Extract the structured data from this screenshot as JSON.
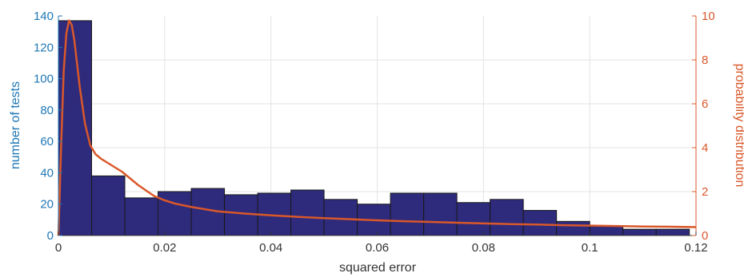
{
  "chart_data": {
    "type": "bar",
    "xlabel": "squared error",
    "ylabel_left": "number of tests",
    "ylabel_right": "probability distribution",
    "xlim": [
      0,
      0.12
    ],
    "ylim_left": [
      0,
      140
    ],
    "ylim_right": [
      0,
      10
    ],
    "x_ticks": [
      0,
      0.02,
      0.04,
      0.06,
      0.08,
      0.1,
      0.12
    ],
    "x_tick_labels": [
      "0",
      "0.02",
      "0.04",
      "0.06",
      "0.08",
      "0.1",
      "0.12"
    ],
    "y_left_ticks": [
      0,
      20,
      40,
      60,
      80,
      100,
      120,
      140
    ],
    "y_left_tick_labels": [
      "0",
      "20",
      "40",
      "60",
      "80",
      "100",
      "120",
      "140"
    ],
    "y_right_ticks": [
      0,
      2,
      4,
      6,
      8,
      10
    ],
    "y_right_tick_labels": [
      "0",
      "2",
      "4",
      "6",
      "8",
      "10"
    ],
    "grid": true,
    "histogram": {
      "bin_width": 0.00625,
      "bin_starts": [
        0,
        0.00625,
        0.0125,
        0.01875,
        0.025,
        0.03125,
        0.0375,
        0.04375,
        0.05,
        0.05625,
        0.0625,
        0.06875,
        0.075,
        0.08125,
        0.0875,
        0.09375,
        0.1,
        0.10625,
        0.1125
      ],
      "counts": [
        137,
        38,
        24,
        28,
        30,
        26,
        27,
        29,
        23,
        20,
        27,
        27,
        21,
        23,
        16,
        9,
        6,
        4,
        4
      ],
      "color": "#2e2a7c"
    },
    "pdf_curve": {
      "color": "#d9582a",
      "x": [
        0.0,
        0.0005,
        0.001,
        0.0015,
        0.002,
        0.0025,
        0.003,
        0.004,
        0.005,
        0.006,
        0.007,
        0.008,
        0.01,
        0.012,
        0.015,
        0.018,
        0.02,
        0.022,
        0.025,
        0.03,
        0.035,
        0.04,
        0.045,
        0.05,
        0.055,
        0.06,
        0.065,
        0.07,
        0.075,
        0.08,
        0.085,
        0.09,
        0.095,
        0.1,
        0.105,
        0.11,
        0.115,
        0.12
      ],
      "y": [
        0.0,
        4.0,
        7.5,
        9.2,
        9.8,
        9.6,
        8.9,
        6.8,
        5.1,
        4.1,
        3.7,
        3.5,
        3.2,
        2.9,
        2.3,
        1.8,
        1.6,
        1.45,
        1.3,
        1.1,
        1.0,
        0.92,
        0.85,
        0.79,
        0.74,
        0.69,
        0.65,
        0.62,
        0.58,
        0.55,
        0.52,
        0.5,
        0.47,
        0.45,
        0.43,
        0.41,
        0.4,
        0.38
      ]
    },
    "colors": {
      "left_axis": "#1f77b4",
      "right_axis": "#d9582a",
      "grid": "#e3e3e3",
      "bar_edge": "#1a1a1a"
    }
  }
}
